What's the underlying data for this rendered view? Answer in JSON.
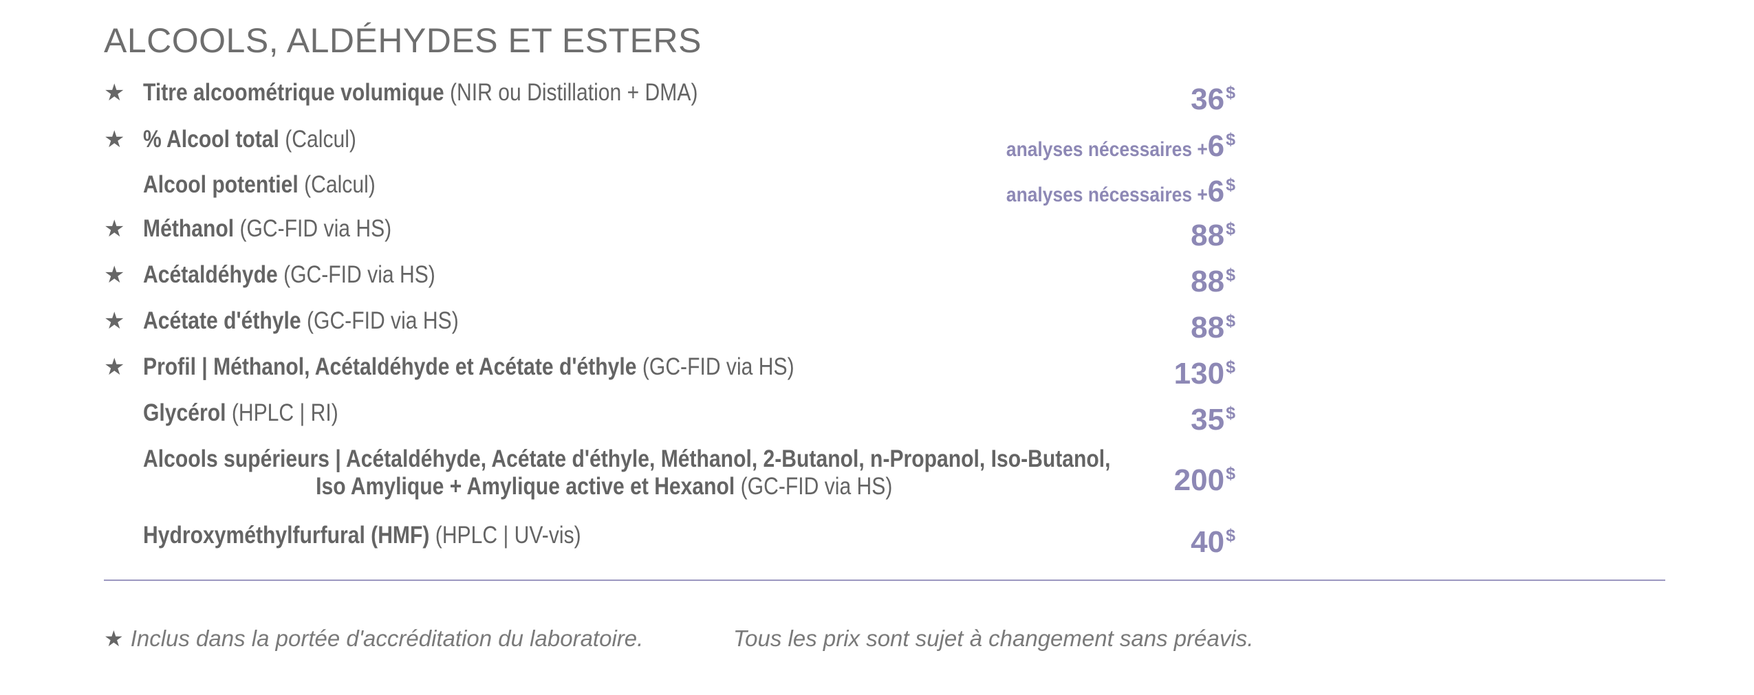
{
  "section": {
    "title": "ALCOOLS, ALDÉHYDES ET ESTERS"
  },
  "star_symbol": "★",
  "rows": [
    {
      "starred": true,
      "name": "Titre alcoométrique volumique",
      "method": " (NIR ou Distillation + DMA)",
      "prefix": "",
      "amount": "36",
      "currency": "$"
    },
    {
      "starred": true,
      "name": "% Alcool total",
      "method": " (Calcul)",
      "prefix": "analyses nécessaires + ",
      "amount": "6",
      "currency": "$"
    },
    {
      "starred": false,
      "name": "Alcool potentiel",
      "method": " (Calcul)",
      "prefix": "analyses nécessaires + ",
      "amount": "6",
      "currency": "$"
    },
    {
      "starred": true,
      "name": "Méthanol",
      "method": " (GC-FID via HS)",
      "prefix": "",
      "amount": "88",
      "currency": "$"
    },
    {
      "starred": true,
      "name": "Acétaldéhyde",
      "method": " (GC-FID via HS)",
      "prefix": "",
      "amount": "88",
      "currency": "$"
    },
    {
      "starred": true,
      "name": "Acétate d'éthyle",
      "method": " (GC-FID via HS)",
      "prefix": "",
      "amount": "88",
      "currency": "$"
    },
    {
      "starred": true,
      "name": "Profil | Méthanol, Acétaldéhyde et Acétate d'éthyle",
      "method": " (GC-FID via HS)",
      "prefix": "",
      "amount": "130",
      "currency": "$"
    },
    {
      "starred": false,
      "name": "Glycérol ",
      "method": " (HPLC | RI)",
      "prefix": "",
      "amount": "35",
      "currency": "$"
    },
    {
      "starred": false,
      "name": "Alcools supérieurs | Acétaldéhyde, Acétate d'éthyle, Méthanol, 2-Butanol, n-Propanol, Iso-Butanol,",
      "name2": "Iso Amylique + Amylique active et Hexanol",
      "method": " (GC-FID via HS)",
      "prefix": "",
      "amount": "200",
      "currency": "$"
    },
    {
      "starred": false,
      "name": "Hydroxyméthylfurfural (HMF)",
      "method": " (HPLC | UV-vis)",
      "prefix": "",
      "amount": "40",
      "currency": "$"
    }
  ],
  "footer": {
    "accreditation_note": "Inclus dans la portée d'accréditation du laboratoire.",
    "price_note": "Tous les prix sont sujet à changement sans préavis."
  }
}
